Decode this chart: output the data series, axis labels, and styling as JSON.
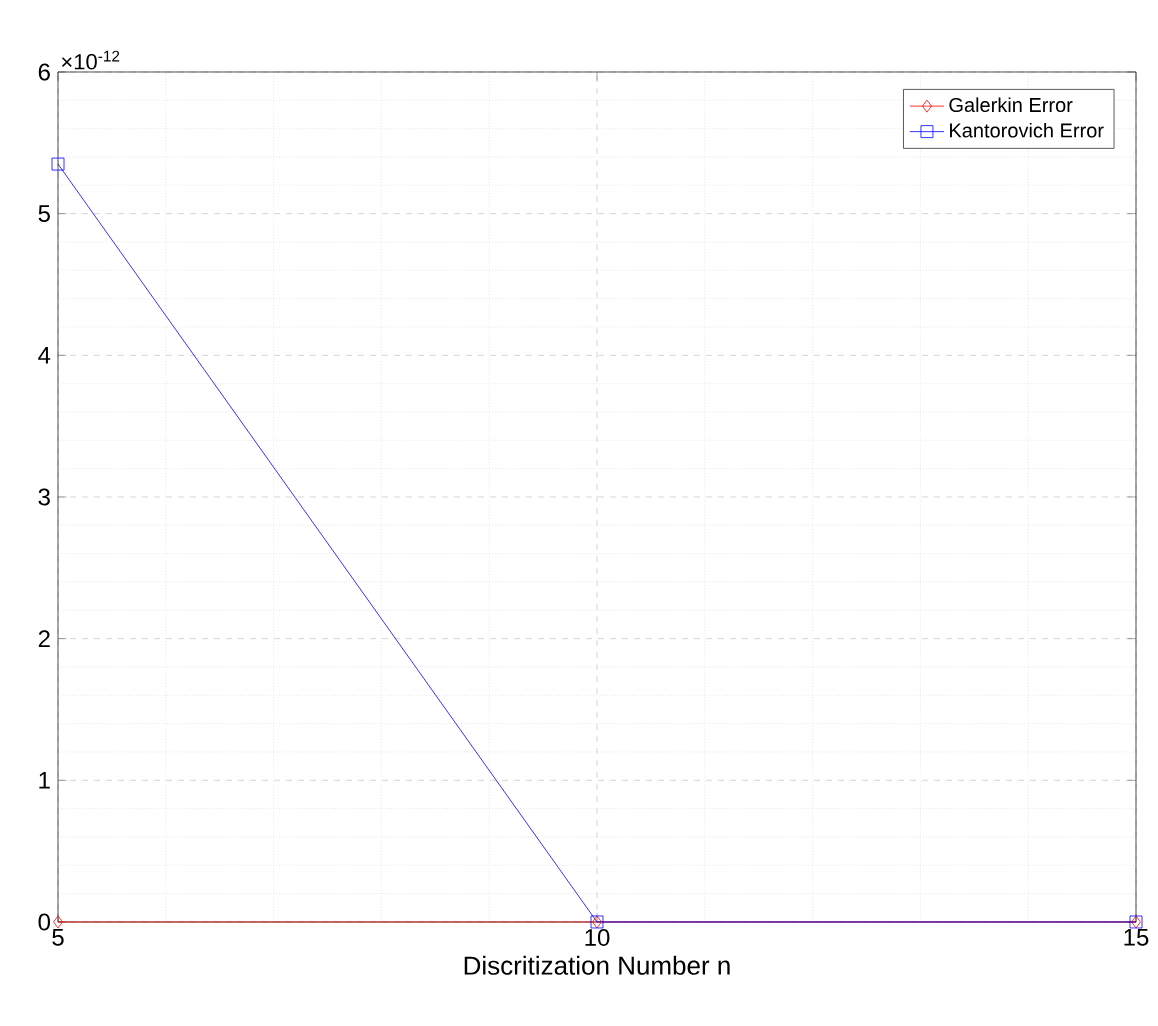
{
  "chart_data": {
    "type": "line",
    "xlabel": "Discritization Number n",
    "x": [
      5,
      10,
      15
    ],
    "series": [
      {
        "name": "Galerkin Error",
        "color": "#ff0000",
        "marker": "diamond",
        "values": [
          0,
          0,
          0
        ]
      },
      {
        "name": "Kantorovich Error",
        "color": "#0000ff",
        "marker": "square",
        "values": [
          5.35,
          0,
          0
        ]
      }
    ],
    "xlim": [
      5,
      15
    ],
    "xticks": [
      5,
      10,
      15
    ],
    "ylim": [
      0,
      6
    ],
    "yticks": [
      0,
      1,
      2,
      3,
      4,
      5,
      6
    ],
    "annotations": [
      "×10$^{-12}$"
    ],
    "grid": true,
    "legend": "top right",
    "line_style": "solid"
  }
}
